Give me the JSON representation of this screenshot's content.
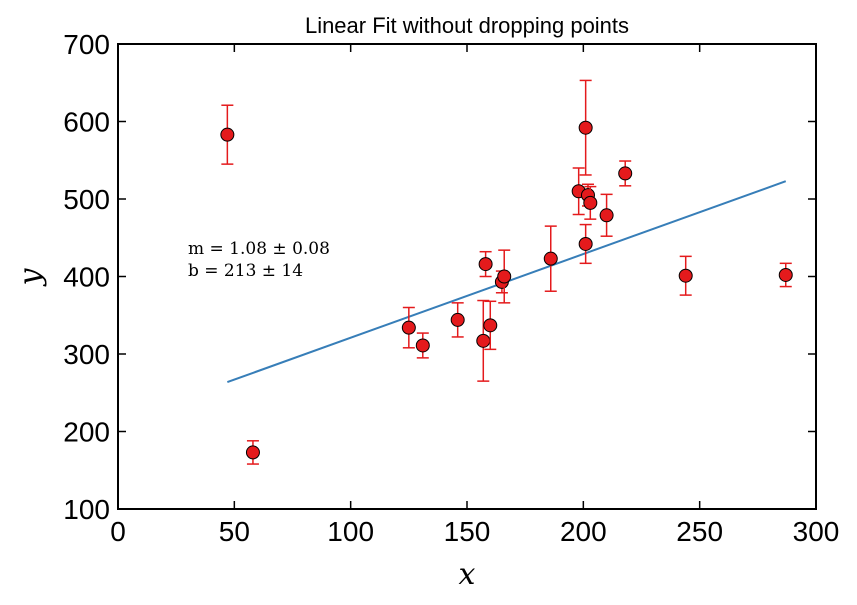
{
  "chart_data": {
    "type": "scatter",
    "title": "Linear Fit without dropping points",
    "xlabel": "x",
    "ylabel": "y",
    "xlim": [
      0,
      300
    ],
    "ylim": [
      100,
      700
    ],
    "xticks": [
      "0",
      "50",
      "100",
      "150",
      "200",
      "250",
      "300"
    ],
    "yticks": [
      "100",
      "200",
      "300",
      "400",
      "500",
      "600",
      "700"
    ],
    "grid": false,
    "points": [
      {
        "x": 47,
        "y": 583,
        "err": 38
      },
      {
        "x": 58,
        "y": 173,
        "err": 15
      },
      {
        "x": 125,
        "y": 334,
        "err": 26
      },
      {
        "x": 131,
        "y": 311,
        "err": 16
      },
      {
        "x": 146,
        "y": 344,
        "err": 22
      },
      {
        "x": 157,
        "y": 317,
        "err": 52
      },
      {
        "x": 158,
        "y": 416,
        "err": 16
      },
      {
        "x": 160,
        "y": 337,
        "err": 31
      },
      {
        "x": 165,
        "y": 393,
        "err": 14
      },
      {
        "x": 166,
        "y": 400,
        "err": 34
      },
      {
        "x": 186,
        "y": 423,
        "err": 42
      },
      {
        "x": 198,
        "y": 510,
        "err": 30
      },
      {
        "x": 201,
        "y": 442,
        "err": 25
      },
      {
        "x": 201,
        "y": 592,
        "err": 61
      },
      {
        "x": 202,
        "y": 505,
        "err": 14
      },
      {
        "x": 203,
        "y": 495,
        "err": 21
      },
      {
        "x": 210,
        "y": 479,
        "err": 27
      },
      {
        "x": 218,
        "y": 533,
        "err": 16
      },
      {
        "x": 244,
        "y": 401,
        "err": 25
      },
      {
        "x": 287,
        "y": 402,
        "err": 15
      }
    ],
    "fit_line": {
      "slope": 1.08,
      "intercept": 213,
      "x_range": [
        47,
        287
      ]
    },
    "annotation": [
      "m = 1.08 ± 0.08",
      "b = 213 ± 14"
    ],
    "colors": {
      "points": "#e41a1c",
      "errorbars": "#e41a1c",
      "fit": "#377eb8"
    }
  }
}
